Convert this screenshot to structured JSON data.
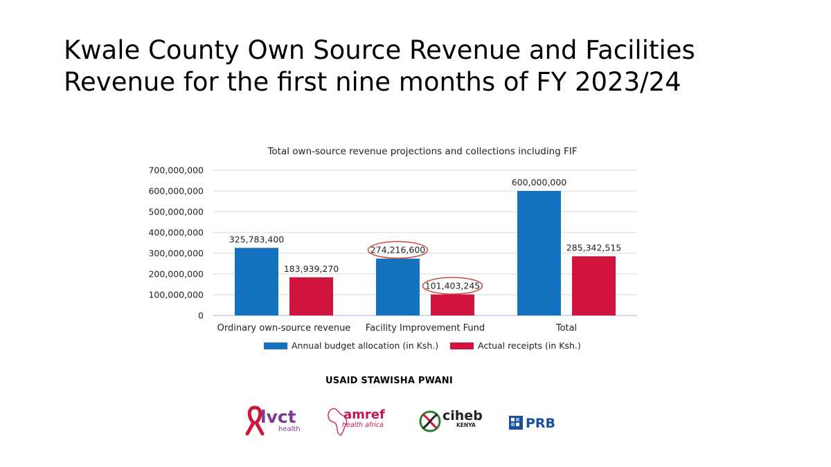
{
  "slide": {
    "title_line1": "Kwale County Own Source Revenue and Facilities",
    "title_line2": "Revenue for the first nine months of FY 2023/24",
    "sponsor": "USAID STAWISHA PWANI"
  },
  "colors": {
    "budget": "#1472BE",
    "actual": "#D0143E",
    "highlight_circle": "#D23A2E",
    "grid": "#C9D9EC"
  },
  "chart_data": {
    "type": "bar",
    "title": "Total own-source revenue projections and collections including FIF",
    "categories": [
      "Ordinary own-source revenue",
      "Facility Improvement Fund",
      "Total"
    ],
    "series": [
      {
        "name": "Annual budget allocation (in Ksh.)",
        "values": [
          325783400,
          274216600,
          600000000
        ],
        "labels": [
          "325,783,400",
          "274,216,600",
          "600,000,000"
        ]
      },
      {
        "name": "Actual receipts (in Ksh.)",
        "values": [
          183939270,
          101403245,
          285342515
        ],
        "labels": [
          "183,939,270",
          "101,403,245",
          "285,342,515"
        ]
      }
    ],
    "highlighted_labels": [
      "274,216,600",
      "101,403,245"
    ],
    "ylim": [
      0,
      700000000
    ],
    "yticks": [
      0,
      100000000,
      200000000,
      300000000,
      400000000,
      500000000,
      600000000,
      700000000
    ],
    "ytick_labels": [
      "0",
      "100,000,000",
      "200,000,000",
      "300,000,000",
      "400,000,000",
      "500,000,000",
      "600,000,000",
      "700,000,000"
    ],
    "xlabel": "",
    "ylabel": "",
    "grid": true,
    "legend_position": "bottom"
  },
  "logos": [
    {
      "name": "lvct",
      "text": "lvct",
      "sub": "health"
    },
    {
      "name": "amref",
      "text": "amref",
      "sub": "health africa"
    },
    {
      "name": "ciheb",
      "text": "ciheb",
      "sub": "KENYA"
    },
    {
      "name": "prb",
      "text": "PRB"
    }
  ]
}
